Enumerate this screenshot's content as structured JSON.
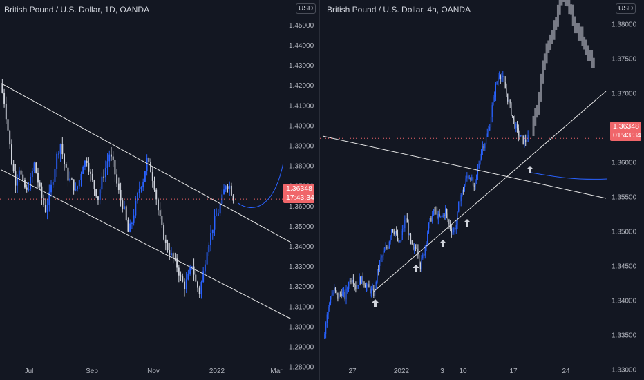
{
  "chart_data": [
    {
      "type": "candlestick",
      "title": "British Pound / U.S. Dollar, 1D, OANDA",
      "currency": "USD",
      "x_ticks": [
        "Jul",
        "Sep",
        "Nov",
        "2022",
        "Mar"
      ],
      "y_ticks": [
        "1.28000",
        "1.29000",
        "1.30000",
        "1.31000",
        "1.32000",
        "1.33000",
        "1.34000",
        "1.35000",
        "1.36000",
        "1.37000",
        "1.38000",
        "1.39000",
        "1.40000",
        "1.41000",
        "1.42000",
        "1.43000",
        "1.44000",
        "1.45000"
      ],
      "ylim": [
        1.2735,
        1.4625
      ],
      "last_price": "1.36348",
      "countdown": "17:43:34",
      "price_path": [
        1.421,
        1.412,
        1.398,
        1.382,
        1.372,
        1.379,
        1.371,
        1.367,
        1.373,
        1.381,
        1.372,
        1.364,
        1.358,
        1.365,
        1.374,
        1.385,
        1.391,
        1.381,
        1.374,
        1.372,
        1.367,
        1.373,
        1.381,
        1.383,
        1.375,
        1.369,
        1.364,
        1.373,
        1.379,
        1.386,
        1.381,
        1.371,
        1.363,
        1.358,
        1.347,
        1.352,
        1.361,
        1.369,
        1.373,
        1.383,
        1.378,
        1.37,
        1.358,
        1.349,
        1.341,
        1.337,
        1.334,
        1.33,
        1.324,
        1.32,
        1.325,
        1.331,
        1.322,
        1.317,
        1.327,
        1.339,
        1.346,
        1.353,
        1.357,
        1.364,
        1.371,
        1.37,
        1.364
      ],
      "trendlines": [
        {
          "from": [
            0,
            1.421
          ],
          "to": [
            77,
            1.342
          ]
        },
        {
          "from": [
            0,
            1.378
          ],
          "to": [
            77,
            1.304
          ]
        }
      ],
      "projection": {
        "from": [
          63,
          1.3615
        ],
        "to": [
          75,
          1.381
        ]
      }
    },
    {
      "type": "candlestick",
      "title": "British Pound / U.S. Dollar, 4h, OANDA",
      "currency": "USD",
      "x_ticks": [
        "27",
        "2022",
        "3",
        "10",
        "17",
        "24"
      ],
      "y_ticks": [
        "1.33000",
        "1.33500",
        "1.34000",
        "1.34500",
        "1.35000",
        "1.35500",
        "1.36000",
        "1.36500",
        "1.37000",
        "1.37500",
        "1.38000"
      ],
      "ylim": [
        1.3285,
        1.3835
      ],
      "last_price": "1.36348",
      "countdown": "01:43:34",
      "price_path": [
        1.3345,
        1.338,
        1.3405,
        1.3415,
        1.3405,
        1.3412,
        1.3405,
        1.3425,
        1.3435,
        1.342,
        1.343,
        1.343,
        1.342,
        1.3415,
        1.341,
        1.344,
        1.346,
        1.347,
        1.348,
        1.3505,
        1.35,
        1.348,
        1.35,
        1.352,
        1.349,
        1.347,
        1.348,
        1.345,
        1.347,
        1.35,
        1.352,
        1.353,
        1.352,
        1.352,
        1.353,
        1.351,
        1.35,
        1.351,
        1.355,
        1.356,
        1.358,
        1.358,
        1.356,
        1.359,
        1.362,
        1.363,
        1.3645,
        1.368,
        1.371,
        1.373,
        1.372,
        1.37,
        1.368,
        1.366,
        1.3645,
        1.3635,
        1.363,
        1.3634
      ],
      "projected_path": [
        1.3645,
        1.368,
        1.374,
        1.377,
        1.38,
        1.383,
        1.384,
        1.382,
        1.379,
        1.378,
        1.376,
        1.374
      ],
      "trendlines": [
        {
          "from": [
            0,
            1.3638
          ],
          "to": [
            1.0,
            1.3548
          ]
        },
        {
          "from": [
            0.18,
            1.3413
          ],
          "to": [
            1.0,
            1.3703
          ]
        }
      ],
      "markers": [
        "up-arrow",
        "up-arrow",
        "up-arrow",
        "up-arrow",
        "up-arrow"
      ],
      "curve_level": 1.3577
    }
  ]
}
